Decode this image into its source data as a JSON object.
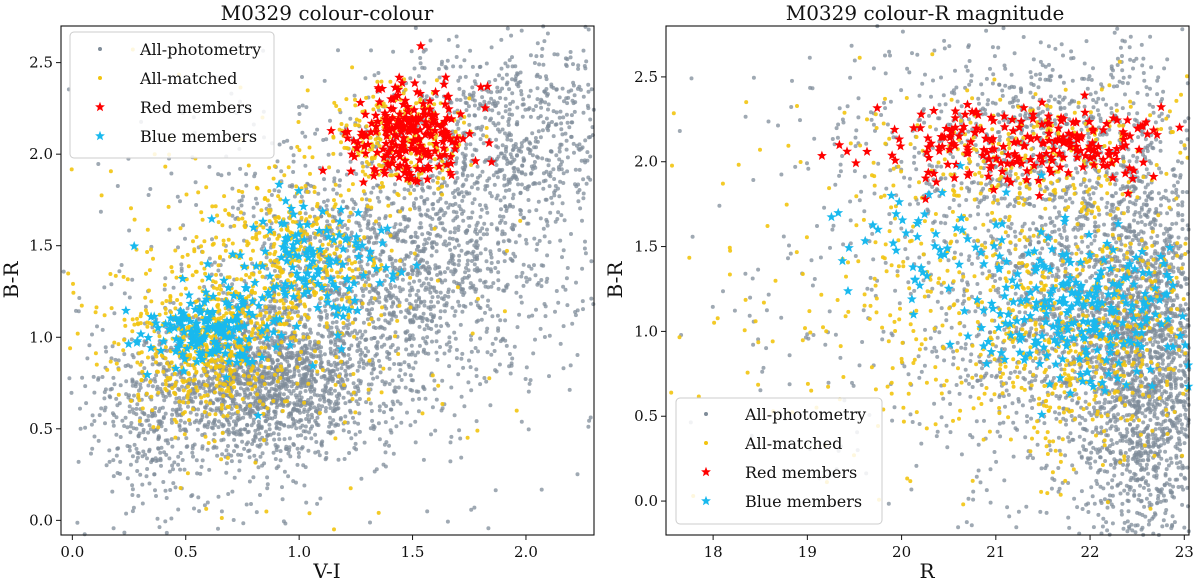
{
  "colors": {
    "all_photometry": "#7f8c99",
    "all_matched": "#f2c40f",
    "red_members": "#ff0000",
    "blue_members": "#19b9ee"
  },
  "chart_data": [
    {
      "type": "scatter",
      "title": "M0329 colour-colour",
      "xlabel": "V-I",
      "ylabel": "B-R",
      "xlim": [
        -0.05,
        2.3
      ],
      "ylim": [
        -0.08,
        2.7
      ],
      "xticks": [
        "0.0",
        "0.5",
        "1.0",
        "1.5",
        "2.0"
      ],
      "yticks": [
        "0.0",
        "0.5",
        "1.0",
        "1.5",
        "2.0",
        "2.5"
      ],
      "grid": false,
      "legend_position": "top-left",
      "series": [
        {
          "name": "All-photometry",
          "marker": "dot",
          "color": "#7f8c99",
          "cloud": [
            {
              "cx": 0.85,
              "cy": 0.75,
              "sx": 0.25,
              "sy": 0.22,
              "n": 1500
            },
            {
              "cx": 1.45,
              "cy": 1.35,
              "sx": 0.35,
              "sy": 0.35,
              "n": 1300
            },
            {
              "cx": 1.95,
              "cy": 2.1,
              "sx": 0.25,
              "sy": 0.3,
              "n": 700
            },
            {
              "cx": 0.35,
              "cy": 0.55,
              "sx": 0.15,
              "sy": 0.3,
              "n": 300
            },
            {
              "cx": 1.1,
              "cy": 1.2,
              "sx": 0.6,
              "sy": 0.65,
              "n": 500
            }
          ]
        },
        {
          "name": "All-matched",
          "marker": "dot",
          "color": "#f2c40f",
          "cloud": [
            {
              "cx": 0.6,
              "cy": 0.95,
              "sx": 0.18,
              "sy": 0.2,
              "n": 500
            },
            {
              "cx": 1.0,
              "cy": 1.4,
              "sx": 0.2,
              "sy": 0.25,
              "n": 400
            },
            {
              "cx": 1.45,
              "cy": 2.1,
              "sx": 0.15,
              "sy": 0.15,
              "n": 250
            },
            {
              "cx": 0.9,
              "cy": 1.1,
              "sx": 0.5,
              "sy": 0.55,
              "n": 200
            }
          ]
        },
        {
          "name": "Red members",
          "marker": "star",
          "color": "#ff0000",
          "cloud": [
            {
              "cx": 1.5,
              "cy": 2.12,
              "sx": 0.13,
              "sy": 0.14,
              "n": 230
            }
          ]
        },
        {
          "name": "Blue members",
          "marker": "star",
          "color": "#19b9ee",
          "cloud": [
            {
              "cx": 0.6,
              "cy": 1.02,
              "sx": 0.14,
              "sy": 0.1,
              "n": 150
            },
            {
              "cx": 1.1,
              "cy": 1.45,
              "sx": 0.16,
              "sy": 0.15,
              "n": 100
            },
            {
              "cx": 0.85,
              "cy": 1.2,
              "sx": 0.25,
              "sy": 0.2,
              "n": 60
            }
          ]
        }
      ]
    },
    {
      "type": "scatter",
      "title": "M0329 colour-R magnitude",
      "xlabel": "R",
      "ylabel": "B-R",
      "xlim": [
        17.5,
        23.05
      ],
      "ylim": [
        -0.2,
        2.8
      ],
      "xticks": [
        "18",
        "19",
        "20",
        "21",
        "22",
        "23"
      ],
      "yticks": [
        "0.0",
        "0.5",
        "1.0",
        "1.5",
        "2.0",
        "2.5"
      ],
      "grid": false,
      "legend_position": "lower-left",
      "series": [
        {
          "name": "All-photometry",
          "marker": "dot",
          "color": "#7f8c99",
          "cloud": [
            {
              "cx": 22.6,
              "cy": 0.8,
              "sx": 0.35,
              "sy": 0.55,
              "n": 1800
            },
            {
              "cx": 21.8,
              "cy": 1.2,
              "sx": 0.7,
              "sy": 0.6,
              "n": 1100
            },
            {
              "cx": 21.5,
              "cy": 2.15,
              "sx": 1.0,
              "sy": 0.3,
              "n": 600
            },
            {
              "cx": 20.5,
              "cy": 1.3,
              "sx": 1.2,
              "sy": 0.7,
              "n": 400
            }
          ]
        },
        {
          "name": "All-matched",
          "marker": "dot",
          "color": "#f2c40f",
          "cloud": [
            {
              "cx": 22.0,
              "cy": 1.0,
              "sx": 0.7,
              "sy": 0.4,
              "n": 500
            },
            {
              "cx": 20.5,
              "cy": 1.3,
              "sx": 1.2,
              "sy": 0.5,
              "n": 350
            },
            {
              "cx": 21.5,
              "cy": 2.1,
              "sx": 0.9,
              "sy": 0.2,
              "n": 200
            }
          ]
        },
        {
          "name": "Red members",
          "marker": "star",
          "color": "#ff0000",
          "cloud": [
            {
              "cx": 21.3,
              "cy": 2.12,
              "sx": 0.9,
              "sy": 0.12,
              "n": 230
            }
          ]
        },
        {
          "name": "Blue members",
          "marker": "star",
          "color": "#19b9ee",
          "cloud": [
            {
              "cx": 22.0,
              "cy": 1.1,
              "sx": 0.6,
              "sy": 0.22,
              "n": 250
            },
            {
              "cx": 20.5,
              "cy": 1.5,
              "sx": 0.6,
              "sy": 0.2,
              "n": 60
            }
          ]
        }
      ]
    }
  ]
}
